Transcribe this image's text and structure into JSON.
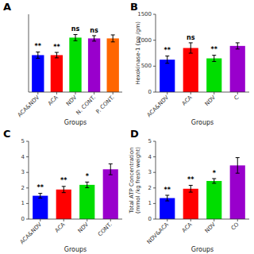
{
  "chart_data": [
    {
      "type": "bar",
      "title": "A",
      "categories": [
        "ACA&NDV",
        "ACA",
        "NDV",
        "N. CONT.",
        "P. CONT."
      ],
      "values": [
        950,
        950,
        1400,
        1380,
        1380
      ],
      "errors": [
        80,
        70,
        80,
        70,
        90
      ],
      "colors": [
        "#0000FF",
        "#FF0000",
        "#00DD00",
        "#9900CC",
        "#FF6600"
      ],
      "xlabel": "Groups",
      "annotations": [
        "**",
        "**",
        "ns",
        "ns",
        null
      ],
      "ylim": [
        0,
        2000
      ],
      "tick_labels": "x"
    },
    {
      "type": "bar",
      "title": "B",
      "categories": [
        "ACA&NDV",
        "ACA",
        "NDV",
        "C"
      ],
      "values": [
        625,
        850,
        650,
        890
      ],
      "errors": [
        70,
        100,
        60,
        60
      ],
      "colors": [
        "#0000FF",
        "#FF0000",
        "#00DD00",
        "#9900CC"
      ],
      "ylabel": "Hexokinase-1 (pg /gm)",
      "xlabel": "Groups",
      "annotations": [
        "**",
        "ns",
        "**",
        null
      ],
      "ylim": [
        0,
        1500
      ],
      "yticks": [
        0,
        500,
        1000,
        1500
      ]
    },
    {
      "type": "bar",
      "title": "C",
      "categories": [
        "ACA&NDV",
        "ACA",
        "NDV",
        "CONT."
      ],
      "values": [
        1.5,
        1.9,
        2.2,
        3.2
      ],
      "errors": [
        0.15,
        0.2,
        0.18,
        0.35
      ],
      "colors": [
        "#0000FF",
        "#FF0000",
        "#00DD00",
        "#9900CC"
      ],
      "xlabel": "Groups",
      "annotations": [
        "**",
        "**",
        "*",
        null
      ],
      "ylim": [
        0,
        5
      ],
      "yticks": [
        0,
        1,
        2,
        3,
        4,
        5
      ]
    },
    {
      "type": "bar",
      "title": "D",
      "categories": [
        "NDV&ACA",
        "ACA",
        "NDV",
        "CO"
      ],
      "values": [
        1.35,
        1.95,
        2.45,
        3.45
      ],
      "errors": [
        0.18,
        0.22,
        0.15,
        0.5
      ],
      "colors": [
        "#0000FF",
        "#FF0000",
        "#00DD00",
        "#9900CC"
      ],
      "ylabel": "Total ATP Concentration\n(mmol /kg fresh weight)",
      "xlabel": "Groups",
      "annotations": [
        "**",
        "**",
        "*",
        null
      ],
      "ylim": [
        0,
        5
      ],
      "yticks": [
        0,
        1,
        2,
        3,
        4,
        5
      ]
    }
  ]
}
